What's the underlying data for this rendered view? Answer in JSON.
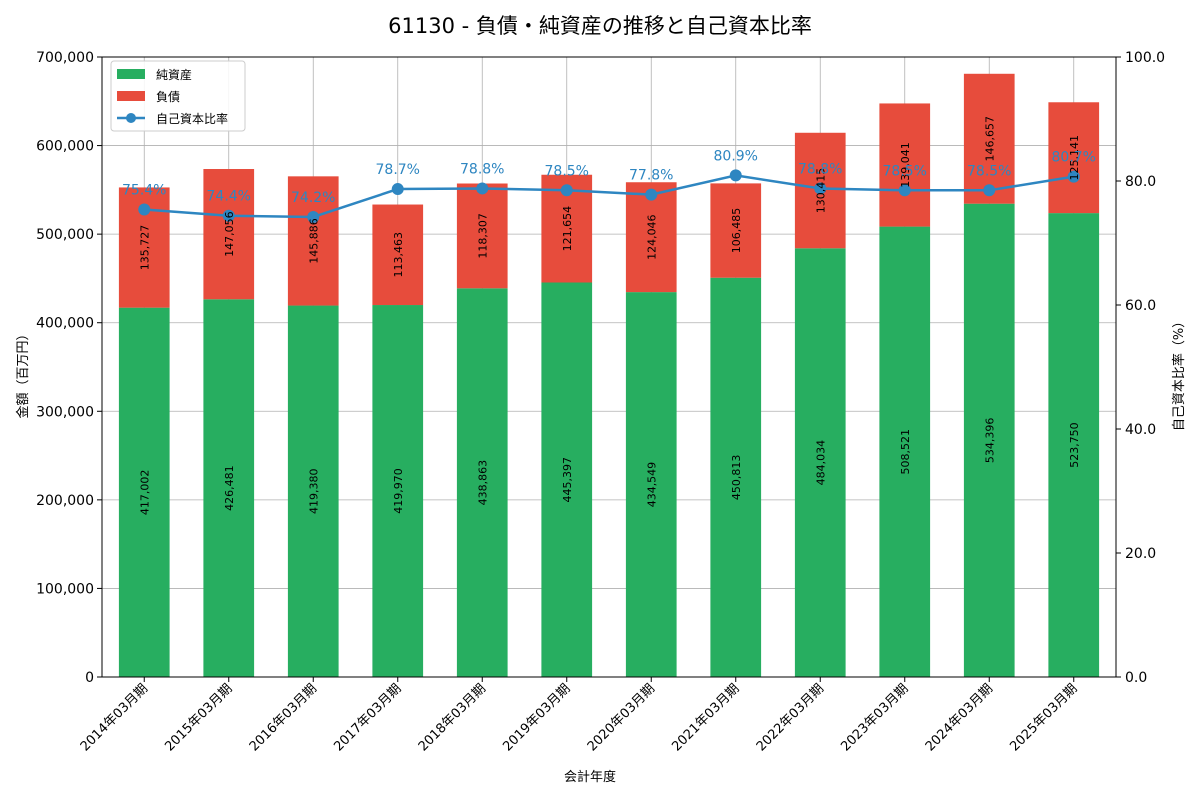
{
  "colors": {
    "equity": "#27ae60",
    "liabilities": "#e74c3c",
    "ratio": "#2e86c1"
  },
  "chart_data": {
    "type": "bar",
    "stacked": true,
    "title": "61130 - 負債・純資産の推移と自己資本比率",
    "xlabel": "会計年度",
    "ylabel": "金額（百万円）",
    "y2label": "自己資本比率（%）",
    "ylim": [
      0,
      700000
    ],
    "y2lim": [
      0,
      100
    ],
    "yticks": [
      "0",
      "100,000",
      "200,000",
      "300,000",
      "400,000",
      "500,000",
      "600,000",
      "700,000"
    ],
    "y2ticks": [
      "0.0",
      "20.0",
      "40.0",
      "60.0",
      "80.0",
      "100.0"
    ],
    "grid": true,
    "legend_position": "top-left",
    "categories": [
      "2014年03月期",
      "2015年03月期",
      "2016年03月期",
      "2017年03月期",
      "2018年03月期",
      "2019年03月期",
      "2020年03月期",
      "2021年03月期",
      "2022年03月期",
      "2023年03月期",
      "2024年03月期",
      "2025年03月期"
    ],
    "series": [
      {
        "name": "純資産",
        "type": "bar",
        "values": [
          417002,
          426481,
          419380,
          419970,
          438863,
          445397,
          434549,
          450813,
          484034,
          508521,
          534396,
          523750
        ],
        "labels": [
          "417,002",
          "426,481",
          "419,380",
          "419,970",
          "438,863",
          "445,397",
          "434,549",
          "450,813",
          "484,034",
          "508,521",
          "534,396",
          "523,750"
        ]
      },
      {
        "name": "負債",
        "type": "bar",
        "values": [
          135727,
          147056,
          145886,
          113463,
          118307,
          121654,
          124046,
          106485,
          130415,
          139041,
          146657,
          125141
        ],
        "labels": [
          "135,727",
          "147,056",
          "145,886",
          "113,463",
          "118,307",
          "121,654",
          "124,046",
          "106,485",
          "130,415",
          "139,041",
          "146,657",
          "125,141"
        ]
      },
      {
        "name": "自己資本比率",
        "type": "line",
        "axis": "right",
        "values": [
          75.4,
          74.4,
          74.2,
          78.7,
          78.8,
          78.5,
          77.8,
          80.9,
          78.8,
          78.5,
          78.5,
          80.7
        ],
        "labels": [
          "75.4%",
          "74.4%",
          "74.2%",
          "78.7%",
          "78.8%",
          "78.5%",
          "77.8%",
          "80.9%",
          "78.8%",
          "78.5%",
          "78.5%",
          "80.7%"
        ]
      }
    ]
  }
}
